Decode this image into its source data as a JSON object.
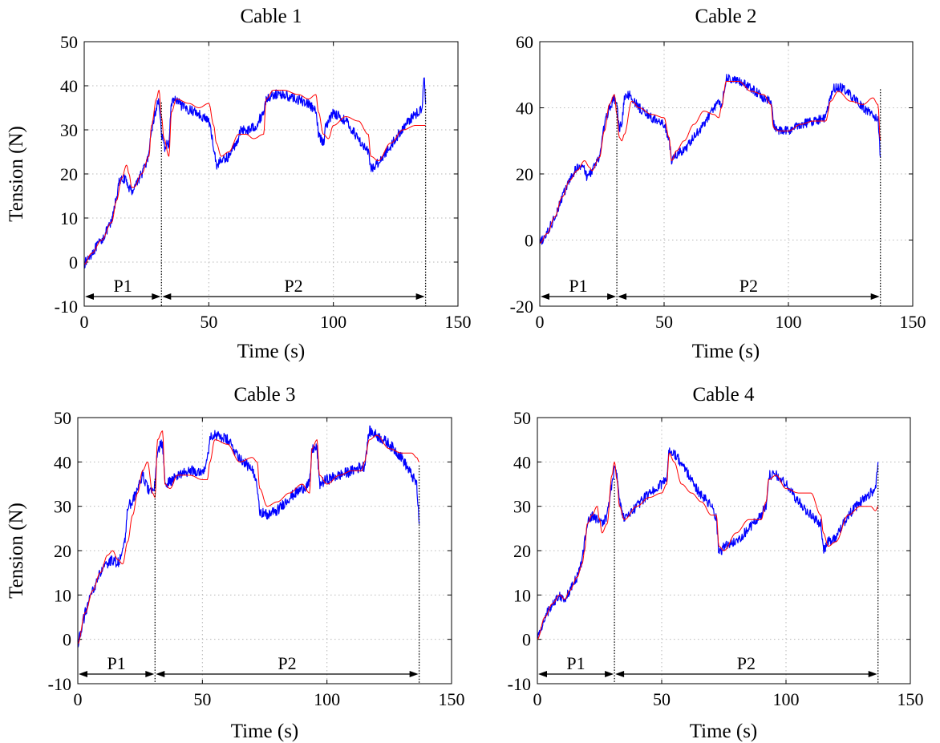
{
  "chart_data": [
    {
      "type": "line",
      "title": "Cable 1",
      "xlabel": "Time (s)",
      "ylabel": "Tension (N)",
      "xlim": [
        0,
        150
      ],
      "ylim": [
        -10,
        50
      ],
      "xticks": [
        0,
        50,
        100,
        150
      ],
      "yticks": [
        -10,
        0,
        10,
        20,
        30,
        40,
        50
      ],
      "grid": true,
      "phases": [
        {
          "label": "P1",
          "start": 0,
          "end": 31
        },
        {
          "label": "P2",
          "start": 31,
          "end": 137
        }
      ],
      "series": [
        {
          "color": "#0000ff",
          "noise": 1.1,
          "x": [
            0,
            3,
            7,
            11,
            13,
            14,
            16,
            18,
            19,
            20,
            23,
            26,
            27,
            29,
            30,
            31,
            32,
            34,
            35,
            36,
            40,
            45,
            50,
            52,
            53,
            55,
            58,
            61,
            63,
            66,
            69,
            72,
            73,
            76,
            80,
            85,
            90,
            93,
            94,
            96,
            97,
            100,
            105,
            110,
            114,
            115,
            117,
            120,
            125,
            130,
            134,
            135.5,
            136.5,
            137
          ],
          "y": [
            -0.5,
            2,
            5,
            9,
            15,
            18,
            19,
            17,
            16,
            17,
            20,
            24,
            30,
            35,
            37,
            29,
            26,
            27,
            36,
            37,
            35,
            34,
            32,
            26,
            22,
            23,
            24,
            27,
            30,
            30,
            31,
            34,
            37,
            38,
            38,
            37,
            36,
            34,
            29,
            27,
            31,
            34,
            32,
            28,
            25,
            21,
            22,
            24,
            28,
            32,
            34,
            35,
            42,
            36
          ]
        },
        {
          "color": "#ff0000",
          "noise": 0,
          "x": [
            0,
            3,
            7,
            11,
            13,
            15,
            17,
            18,
            19,
            20,
            23,
            26,
            27,
            29,
            30,
            31,
            32,
            34,
            35,
            37,
            42,
            46,
            50,
            52,
            53,
            55,
            58,
            62,
            65,
            68,
            72,
            73,
            76,
            80,
            86,
            90,
            93,
            94,
            96,
            98,
            100,
            105,
            110,
            114,
            115,
            118,
            123,
            128,
            133,
            137
          ],
          "y": [
            -0.5,
            2,
            5,
            9,
            14,
            19,
            22,
            20,
            17,
            17,
            20,
            24,
            31,
            37,
            39,
            33,
            28,
            24,
            34,
            37,
            36,
            35,
            36,
            31,
            27,
            24,
            25,
            29,
            29,
            28,
            29,
            37,
            39,
            39,
            38,
            37,
            38,
            34,
            29,
            28,
            31,
            33,
            32,
            29,
            24,
            23,
            27,
            30,
            31,
            31
          ]
        }
      ]
    },
    {
      "type": "line",
      "title": "Cable 2",
      "xlabel": "Time (s)",
      "ylabel": "",
      "xlim": [
        0,
        150
      ],
      "ylim": [
        -20,
        60
      ],
      "xticks": [
        0,
        50,
        100,
        150
      ],
      "yticks": [
        -20,
        0,
        20,
        40,
        60
      ],
      "grid": true,
      "phases": [
        {
          "label": "P1",
          "start": 0,
          "end": 31
        },
        {
          "label": "P2",
          "start": 31,
          "end": 137
        }
      ],
      "series": [
        {
          "color": "#0000ff",
          "noise": 1.4,
          "x": [
            0,
            3,
            6,
            9,
            12,
            15,
            17,
            19,
            21,
            24,
            26,
            28,
            30,
            31,
            32,
            33,
            34,
            36,
            40,
            45,
            50,
            52,
            53,
            55,
            58,
            62,
            66,
            70,
            72,
            73,
            75,
            80,
            85,
            90,
            93,
            94,
            96,
            100,
            105,
            110,
            115,
            118,
            122,
            126,
            130,
            134,
            136,
            137
          ],
          "y": [
            -1,
            2,
            7,
            13,
            18,
            22,
            23,
            19,
            21,
            25,
            35,
            40,
            43,
            40,
            34,
            35,
            43,
            44,
            40,
            37,
            35,
            30,
            24,
            26,
            27,
            31,
            35,
            40,
            42,
            40,
            49,
            48,
            46,
            43,
            42,
            35,
            33,
            33,
            35,
            36,
            37,
            46,
            46,
            43,
            40,
            38,
            36,
            25
          ]
        },
        {
          "color": "#ff0000",
          "noise": 0,
          "x": [
            0,
            3,
            6,
            9,
            12,
            15,
            18,
            20,
            21,
            24,
            26,
            28,
            30,
            31,
            32,
            33,
            34,
            37,
            40,
            45,
            50,
            52,
            53,
            55,
            58,
            62,
            66,
            70,
            72,
            73,
            75,
            80,
            85,
            90,
            93,
            94,
            96,
            100,
            105,
            110,
            115,
            117,
            120,
            125,
            130,
            134,
            136,
            137
          ],
          "y": [
            -1,
            2,
            7,
            13,
            18,
            21,
            24,
            22,
            21,
            25,
            33,
            41,
            44,
            38,
            31,
            30,
            32,
            42,
            40,
            38,
            37,
            31,
            24,
            27,
            30,
            35,
            39,
            38,
            37,
            40,
            48,
            48,
            45,
            44,
            41,
            34,
            33,
            33,
            35,
            36,
            36,
            42,
            45,
            42,
            41,
            43,
            41,
            30
          ]
        }
      ]
    },
    {
      "type": "line",
      "title": "Cable 3",
      "xlabel": "Time (s)",
      "ylabel": "Tension (N)",
      "xlim": [
        0,
        150
      ],
      "ylim": [
        -10,
        50
      ],
      "xticks": [
        0,
        50,
        100,
        150
      ],
      "yticks": [
        -10,
        0,
        10,
        20,
        30,
        40,
        50
      ],
      "grid": true,
      "phases": [
        {
          "label": "P1",
          "start": 0,
          "end": 31
        },
        {
          "label": "P2",
          "start": 31,
          "end": 137
        }
      ],
      "series": [
        {
          "color": "#0000ff",
          "noise": 1.2,
          "x": [
            0,
            3,
            6,
            9,
            12,
            14,
            16,
            18,
            19,
            20,
            22,
            24,
            26,
            28,
            30,
            31,
            32,
            34,
            35,
            36,
            40,
            45,
            50,
            52,
            53,
            55,
            60,
            65,
            70,
            72,
            73,
            76,
            80,
            85,
            90,
            93,
            94,
            96,
            97,
            100,
            105,
            110,
            114,
            115,
            117,
            120,
            125,
            130,
            134,
            136,
            137
          ],
          "y": [
            -1,
            6,
            11,
            15,
            17,
            18,
            17,
            20,
            22,
            30,
            31,
            34,
            37,
            34,
            33,
            35,
            43,
            44,
            35,
            35,
            37,
            38,
            38,
            40,
            46,
            46,
            45,
            41,
            38,
            35,
            29,
            28,
            29,
            32,
            34,
            35,
            43,
            43,
            35,
            36,
            37,
            38,
            39,
            39,
            47,
            46,
            44,
            41,
            37,
            35,
            26
          ]
        },
        {
          "color": "#ff0000",
          "noise": 0,
          "x": [
            0,
            3,
            6,
            9,
            12,
            14,
            16,
            18,
            20,
            22,
            24,
            26,
            28,
            30,
            31,
            32,
            34,
            35,
            37,
            40,
            45,
            50,
            52,
            53,
            55,
            60,
            65,
            70,
            72,
            73,
            76,
            80,
            85,
            90,
            93,
            94,
            96,
            97,
            100,
            105,
            110,
            114,
            115,
            117,
            120,
            125,
            130,
            134,
            136,
            137
          ],
          "y": [
            -1,
            6,
            11,
            15,
            19,
            20,
            18,
            17,
            22,
            28,
            33,
            38,
            40,
            33,
            32,
            45,
            47,
            35,
            34,
            37,
            37,
            36,
            36,
            40,
            45,
            44,
            40,
            41,
            40,
            34,
            30,
            31,
            33,
            35,
            33,
            43,
            45,
            37,
            35,
            37,
            38,
            38,
            40,
            45,
            46,
            43,
            42,
            42,
            41,
            40
          ]
        }
      ]
    },
    {
      "type": "line",
      "title": "Cable 4",
      "xlabel": "Time (s)",
      "ylabel": "",
      "xlim": [
        0,
        150
      ],
      "ylim": [
        -10,
        50
      ],
      "xticks": [
        0,
        50,
        100,
        150
      ],
      "yticks": [
        -10,
        0,
        10,
        20,
        30,
        40,
        50
      ],
      "grid": true,
      "phases": [
        {
          "label": "P1",
          "start": 0,
          "end": 31
        },
        {
          "label": "P2",
          "start": 31,
          "end": 137
        }
      ],
      "series": [
        {
          "color": "#0000ff",
          "noise": 1.1,
          "x": [
            0,
            3,
            6,
            9,
            11,
            13,
            16,
            18,
            19,
            20,
            22,
            24,
            26,
            28,
            30,
            31,
            32,
            33,
            35,
            40,
            45,
            50,
            52,
            53,
            55,
            60,
            65,
            70,
            72,
            73,
            75,
            80,
            85,
            90,
            92,
            93,
            96,
            100,
            105,
            110,
            114,
            115,
            117,
            120,
            125,
            130,
            134,
            136,
            137
          ],
          "y": [
            0,
            5,
            8,
            10,
            9,
            11,
            14,
            18,
            22,
            26,
            28,
            27,
            26,
            28,
            35,
            39,
            37,
            31,
            27,
            30,
            33,
            35,
            36,
            43,
            42,
            38,
            33,
            30,
            27,
            19,
            21,
            22,
            25,
            28,
            30,
            37,
            37,
            35,
            31,
            28,
            26,
            20,
            22,
            23,
            28,
            31,
            33,
            34,
            40
          ]
        },
        {
          "color": "#ff0000",
          "noise": 0,
          "x": [
            0,
            3,
            6,
            9,
            11,
            13,
            16,
            18,
            19,
            20,
            22,
            24,
            25,
            26,
            28,
            30,
            31,
            32,
            33,
            35,
            40,
            45,
            50,
            52,
            53,
            55,
            58,
            62,
            66,
            70,
            72,
            73,
            75,
            80,
            85,
            90,
            92,
            93,
            96,
            100,
            105,
            110,
            114,
            115,
            117,
            120,
            125,
            130,
            134,
            136,
            137
          ],
          "y": [
            0,
            5,
            8,
            10,
            9,
            11,
            14,
            17,
            20,
            26,
            28,
            30,
            27,
            24,
            26,
            37,
            40,
            36,
            30,
            27,
            30,
            32,
            33,
            35,
            42,
            40,
            35,
            33,
            31,
            28,
            28,
            21,
            20,
            24,
            27,
            27,
            31,
            36,
            37,
            34,
            33,
            33,
            28,
            24,
            21,
            22,
            28,
            30,
            30,
            29,
            30
          ]
        }
      ]
    }
  ]
}
